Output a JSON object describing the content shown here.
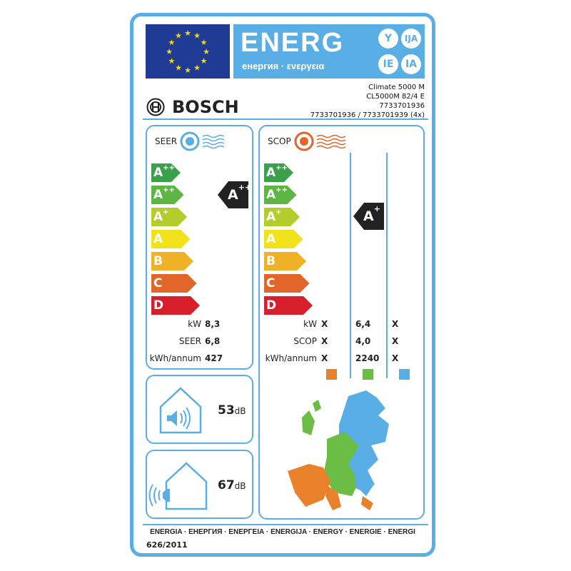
{
  "header": {
    "energy_word": "ENERG",
    "energy_subtitle": "енергия · ενεργεια",
    "suffixes": [
      "Y",
      "IJA",
      "IE",
      "IA"
    ]
  },
  "brand": {
    "name": "BOSCH"
  },
  "product": {
    "lines": [
      "Climate 5000 M",
      "CL5000M 82/4 E",
      "7733701936",
      "7733701936 / 7733701939 (4x)"
    ]
  },
  "scale": [
    {
      "letter": "A",
      "sup": "+++",
      "color": "#3aa04a"
    },
    {
      "letter": "A",
      "sup": "++",
      "color": "#5db544"
    },
    {
      "letter": "A",
      "sup": "+",
      "color": "#b5cd2a"
    },
    {
      "letter": "A",
      "sup": "",
      "color": "#f2e21c"
    },
    {
      "letter": "B",
      "sup": "",
      "color": "#eeb128"
    },
    {
      "letter": "C",
      "sup": "",
      "color": "#e2662a"
    },
    {
      "letter": "D",
      "sup": "",
      "color": "#d61f2a"
    }
  ],
  "cooling": {
    "title": "SEER",
    "rating": {
      "letter": "A",
      "sup": "++"
    },
    "rows": [
      {
        "label": "kW",
        "value": "8,3"
      },
      {
        "label": "SEER",
        "value": "6,8"
      },
      {
        "label": "kWh/annum",
        "value": "427"
      }
    ]
  },
  "heating": {
    "title": "SCOP",
    "rating": {
      "letter": "A",
      "sup": "+"
    },
    "rows": [
      {
        "label": "kW",
        "values": [
          "X",
          "6,4",
          "X"
        ]
      },
      {
        "label": "SCOP",
        "values": [
          "X",
          "4,0",
          "X"
        ]
      },
      {
        "label": "kWh/annum",
        "values": [
          "X",
          "2240",
          "X"
        ]
      }
    ],
    "climate_colors": [
      "#e8812a",
      "#6cbd45",
      "#5aaee6"
    ]
  },
  "noise": {
    "indoor": {
      "value": "53",
      "unit": "dB"
    },
    "outdoor": {
      "value": "67",
      "unit": "dB"
    }
  },
  "footer": {
    "languages": "ENERGIA · ЕНЕРГИЯ · ΕΝΕΡΓΕΙΑ · ENERGIJA · ENERGY · ENERGIE · ENERGI",
    "regulation": "626/2011"
  },
  "colors": {
    "frame": "#5aaee6",
    "flag": "#1f3b94",
    "star": "#f5d90a"
  }
}
